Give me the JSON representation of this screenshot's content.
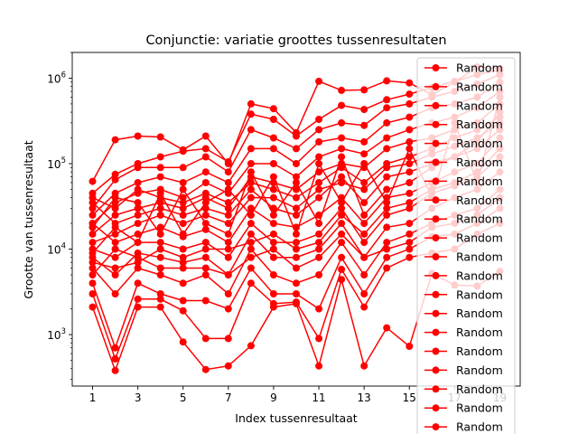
{
  "chart_data": {
    "type": "line",
    "title": "Conjunctie: variatie groottes tussenresultaten",
    "xlabel": "Index tussenresultaat",
    "ylabel": "Grootte van tussenresultaat",
    "xlim": [
      0.1,
      19.9
    ],
    "ylim": [
      250,
      2000000
    ],
    "yscale": "log",
    "x_ticks": [
      1,
      3,
      5,
      7,
      9,
      11,
      13,
      15,
      17,
      19
    ],
    "y_ticks": [
      {
        "value": 1000,
        "base": "10",
        "exp": "3"
      },
      {
        "value": 10000,
        "base": "10",
        "exp": "4"
      },
      {
        "value": 100000,
        "base": "10",
        "exp": "5"
      },
      {
        "value": 1000000,
        "base": "10",
        "exp": "6"
      }
    ],
    "grid": false,
    "legend_position": "top-right",
    "series_color": "#ff0000",
    "series": [
      {
        "name": "Random",
        "x": [
          1,
          2,
          3,
          4,
          5,
          6,
          7,
          8,
          9,
          10,
          11,
          12,
          13,
          14,
          15,
          16,
          17,
          18,
          19
        ],
        "values": [
          62000,
          190000,
          210000,
          205000,
          145000,
          210000,
          100000,
          500000,
          440000,
          230000,
          920000,
          720000,
          730000,
          930000,
          880000,
          640000,
          900000,
          1350000,
          1300000
        ]
      },
      {
        "name": "Random",
        "x": [
          1,
          2,
          3,
          4,
          5,
          6,
          7,
          8,
          9,
          10,
          11,
          12,
          13,
          14,
          15,
          16,
          17,
          18,
          19
        ],
        "values": [
          2100,
          380,
          2100,
          2100,
          820,
          390,
          430,
          740,
          2100,
          2300,
          430,
          4400,
          430,
          1200,
          730,
          5200,
          3800,
          3700,
          5500
        ]
      },
      {
        "name": "Random",
        "x": [
          1,
          2,
          3,
          4,
          5,
          6,
          7,
          8,
          9,
          10,
          11,
          12,
          13,
          14,
          15,
          16,
          17,
          18,
          19
        ],
        "values": [
          45000,
          75000,
          100000,
          120000,
          140000,
          150000,
          105000,
          380000,
          330000,
          210000,
          330000,
          480000,
          430000,
          560000,
          650000,
          780000,
          920000,
          1100000,
          1250000
        ]
      },
      {
        "name": "Random",
        "x": [
          1,
          2,
          3,
          4,
          5,
          6,
          7,
          8,
          9,
          10,
          11,
          12,
          13,
          14,
          15,
          16,
          17,
          18,
          19
        ],
        "values": [
          3000,
          520,
          2600,
          2600,
          1900,
          900,
          900,
          4000,
          2300,
          2400,
          900,
          5800,
          2100,
          6000,
          8000,
          9000,
          10000,
          15000,
          20000
        ]
      },
      {
        "name": "Random",
        "x": [
          1,
          2,
          3,
          4,
          5,
          6,
          7,
          8,
          9,
          10,
          11,
          12,
          13,
          14,
          15,
          16,
          17,
          18,
          19
        ],
        "values": [
          30000,
          65000,
          90000,
          90000,
          90000,
          120000,
          80000,
          250000,
          200000,
          150000,
          250000,
          300000,
          280000,
          450000,
          500000,
          600000,
          700000,
          850000,
          1100000
        ]
      },
      {
        "name": "Random",
        "x": [
          1,
          2,
          3,
          4,
          5,
          6,
          7,
          8,
          9,
          10,
          11,
          12,
          13,
          14,
          15,
          16,
          17,
          18,
          19
        ],
        "values": [
          4000,
          700,
          4000,
          3000,
          2500,
          2500,
          2000,
          6000,
          3000,
          3000,
          2000,
          8000,
          3000,
          8000,
          10000,
          14000,
          15000,
          20000,
          30000
        ]
      },
      {
        "name": "Random",
        "x": [
          1,
          2,
          3,
          4,
          5,
          6,
          7,
          8,
          9,
          10,
          11,
          12,
          13,
          14,
          15,
          16,
          17,
          18,
          19
        ],
        "values": [
          25000,
          45000,
          60000,
          70000,
          60000,
          80000,
          60000,
          150000,
          150000,
          100000,
          180000,
          200000,
          180000,
          300000,
          350000,
          450000,
          500000,
          600000,
          900000
        ]
      },
      {
        "name": "Random",
        "x": [
          1,
          2,
          3,
          4,
          5,
          6,
          7,
          8,
          9,
          10,
          11,
          12,
          13,
          14,
          15,
          16,
          17,
          18,
          19
        ],
        "values": [
          6000,
          3000,
          6000,
          5000,
          4000,
          5000,
          3000,
          10000,
          5000,
          4000,
          5000,
          12000,
          5000,
          12000,
          15000,
          20000,
          25000,
          30000,
          50000
        ]
      },
      {
        "name": "Random",
        "x": [
          1,
          2,
          3,
          4,
          5,
          6,
          7,
          8,
          9,
          10,
          11,
          12,
          13,
          14,
          15,
          16,
          17,
          18,
          19
        ],
        "values": [
          20000,
          35000,
          45000,
          50000,
          40000,
          60000,
          45000,
          100000,
          100000,
          70000,
          120000,
          150000,
          130000,
          200000,
          250000,
          300000,
          350000,
          450000,
          700000
        ]
      },
      {
        "name": "Random",
        "x": [
          1,
          2,
          3,
          4,
          5,
          6,
          7,
          8,
          9,
          10,
          11,
          12,
          13,
          14,
          15,
          16,
          17,
          18,
          19
        ],
        "values": [
          8000,
          5000,
          9000,
          8000,
          7000,
          8000,
          5000,
          15000,
          8000,
          8000,
          10000,
          20000,
          8000,
          18000,
          20000,
          30000,
          40000,
          50000,
          80000
        ]
      },
      {
        "name": "Random",
        "x": [
          1,
          2,
          3,
          4,
          5,
          6,
          7,
          8,
          9,
          10,
          11,
          12,
          13,
          14,
          15,
          16,
          17,
          18,
          19
        ],
        "values": [
          15000,
          25000,
          30000,
          35000,
          30000,
          40000,
          30000,
          70000,
          60000,
          50000,
          80000,
          100000,
          90000,
          150000,
          180000,
          200000,
          250000,
          300000,
          500000
        ]
      },
      {
        "name": "Random",
        "x": [
          1,
          2,
          3,
          4,
          5,
          6,
          7,
          8,
          9,
          10,
          11,
          12,
          13,
          14,
          15,
          16,
          17,
          18,
          19
        ],
        "values": [
          10000,
          8000,
          12000,
          12000,
          10000,
          12000,
          8000,
          20000,
          12000,
          12000,
          15000,
          30000,
          12000,
          25000,
          30000,
          45000,
          55000,
          70000,
          120000
        ]
      },
      {
        "name": "Random",
        "x": [
          1,
          2,
          3,
          4,
          5,
          6,
          7,
          8,
          9,
          10,
          11,
          12,
          13,
          14,
          15,
          16,
          17,
          18,
          19
        ],
        "values": [
          12000,
          15000,
          20000,
          25000,
          20000,
          25000,
          20000,
          40000,
          40000,
          30000,
          50000,
          60000,
          50000,
          90000,
          100000,
          130000,
          160000,
          200000,
          300000
        ]
      },
      {
        "name": "Random",
        "x": [
          1,
          2,
          3,
          4,
          5,
          6,
          7,
          8,
          9,
          10,
          11,
          12,
          13,
          14,
          15,
          16,
          17,
          18,
          19
        ],
        "values": [
          20000,
          12000,
          15000,
          18000,
          14000,
          17000,
          12000,
          30000,
          20000,
          18000,
          25000,
          40000,
          20000,
          40000,
          45000,
          60000,
          80000,
          100000,
          200000
        ]
      },
      {
        "name": "Random",
        "x": [
          1,
          2,
          3,
          4,
          5,
          6,
          7,
          8,
          9,
          10,
          11,
          12,
          13,
          14,
          15,
          16,
          17,
          18,
          19
        ],
        "values": [
          35000,
          20000,
          25000,
          30000,
          25000,
          30000,
          25000,
          50000,
          30000,
          25000,
          40000,
          70000,
          35000,
          70000,
          80000,
          100000,
          120000,
          150000,
          250000
        ]
      },
      {
        "name": "Random",
        "x": [
          1,
          2,
          3,
          4,
          5,
          6,
          7,
          8,
          9,
          10,
          11,
          12,
          13,
          14,
          15,
          16,
          17,
          18,
          19
        ],
        "values": [
          5000,
          10000,
          8000,
          6000,
          6000,
          6000,
          5000,
          8000,
          10000,
          6000,
          8000,
          15000,
          8000,
          10000,
          12000,
          18000,
          20000,
          25000,
          40000
        ]
      },
      {
        "name": "Random",
        "x": [
          1,
          2,
          3,
          4,
          5,
          6,
          7,
          8,
          9,
          10,
          11,
          12,
          13,
          14,
          15,
          16,
          17,
          18,
          19
        ],
        "values": [
          40000,
          30000,
          50000,
          40000,
          35000,
          45000,
          35000,
          60000,
          50000,
          40000,
          60000,
          90000,
          60000,
          100000,
          120000,
          150000,
          200000,
          250000,
          350000
        ]
      },
      {
        "name": "Random",
        "x": [
          1,
          2,
          3,
          4,
          5,
          6,
          7,
          8,
          9,
          10,
          11,
          12,
          13,
          14,
          15,
          16,
          17,
          18,
          19
        ],
        "values": [
          7000,
          6000,
          7000,
          10000,
          8000,
          10000,
          10000,
          12000,
          15000,
          10000,
          12000,
          25000,
          15000,
          30000,
          35000,
          50000,
          60000,
          80000,
          150000
        ]
      },
      {
        "name": "Random",
        "x": [
          1,
          2,
          3,
          4,
          5,
          6,
          7,
          8,
          9,
          10,
          11,
          12,
          13,
          14,
          15,
          16,
          17,
          18,
          19
        ],
        "values": [
          18000,
          40000,
          35000,
          15000,
          50000,
          20000,
          15000,
          80000,
          25000,
          60000,
          20000,
          120000,
          25000,
          50000,
          60000,
          90000,
          120000,
          180000,
          400000
        ]
      },
      {
        "name": "Random",
        "x": [
          1,
          2,
          3,
          4,
          5,
          6,
          7,
          8,
          9,
          10,
          11,
          12,
          13,
          14,
          15,
          16,
          17,
          18,
          19
        ],
        "values": [
          9000,
          18000,
          12000,
          45000,
          15000,
          35000,
          50000,
          25000,
          70000,
          15000,
          100000,
          35000,
          100000,
          35000,
          150000,
          40000,
          300000,
          60000,
          600000
        ]
      }
    ]
  }
}
